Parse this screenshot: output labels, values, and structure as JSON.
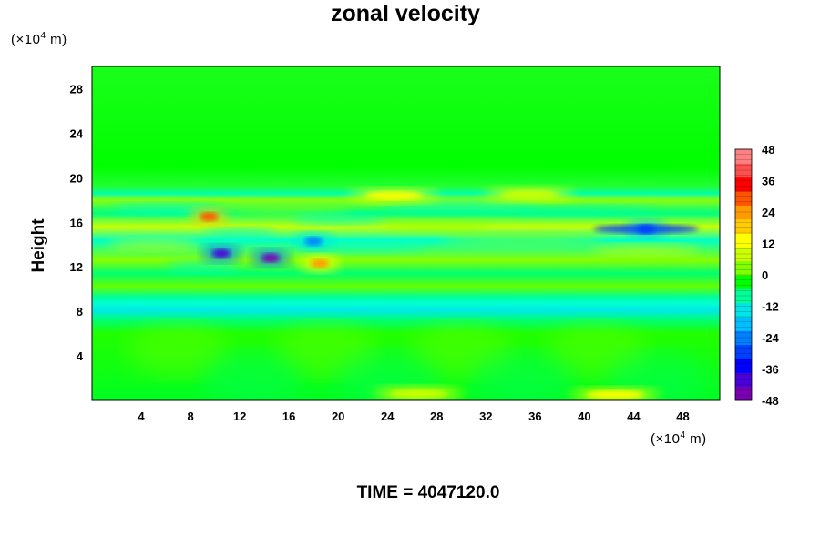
{
  "chart_data": {
    "type": "heatmap",
    "title": "zonal velocity",
    "ylabel": "Height",
    "y_unit_label": "(×10",
    "y_unit_exp": "4",
    "y_unit_tail": " m)",
    "x_unit_label": "(×10",
    "x_unit_exp": "4",
    "x_unit_tail": " m)",
    "xlim": [
      0,
      51
    ],
    "ylim": [
      0,
      30
    ],
    "x_ticks": [
      "4",
      "8",
      "12",
      "16",
      "20",
      "24",
      "28",
      "32",
      "36",
      "40",
      "44",
      "48"
    ],
    "x_tick_values": [
      4,
      8,
      12,
      16,
      20,
      24,
      28,
      32,
      36,
      40,
      44,
      48
    ],
    "y_ticks": [
      "4",
      "8",
      "12",
      "16",
      "20",
      "24",
      "28"
    ],
    "y_tick_values": [
      4,
      8,
      12,
      16,
      20,
      24,
      28
    ],
    "colorbar": {
      "min": -48,
      "max": 48,
      "tick_labels": [
        "48",
        "36",
        "24",
        "12",
        "0",
        "-12",
        "-24",
        "-36",
        "-48"
      ],
      "tick_values": [
        48,
        36,
        24,
        12,
        0,
        -12,
        -24,
        -36,
        -48
      ],
      "colors": [
        "#7b00b4",
        "#4a00d8",
        "#0000ff",
        "#0040ff",
        "#0080ff",
        "#00bfff",
        "#00e5e5",
        "#00ff99",
        "#00ff00",
        "#7fff00",
        "#ccff00",
        "#ffff00",
        "#ffcc00",
        "#ff9900",
        "#ff5500",
        "#ff0000",
        "#ff5050",
        "#ff8080"
      ]
    },
    "features": [
      {
        "x": 9.5,
        "y": 16.5,
        "value": 30
      },
      {
        "x": 10.5,
        "y": 13.2,
        "value": -40
      },
      {
        "x": 14.5,
        "y": 12.8,
        "value": -44
      },
      {
        "x": 18.0,
        "y": 14.3,
        "value": -25
      },
      {
        "x": 18.5,
        "y": 12.3,
        "value": 24
      },
      {
        "x": 24.5,
        "y": 18.4,
        "value": 12
      },
      {
        "x": 35.5,
        "y": 18.5,
        "value": 10
      },
      {
        "x": 45.0,
        "y": 15.4,
        "value": -28
      },
      {
        "x": 42.5,
        "y": 0.5,
        "value": 12
      },
      {
        "x": 26.5,
        "y": 0.6,
        "value": 10
      }
    ]
  },
  "footer": {
    "time_label": "TIME = 4047120.0"
  }
}
